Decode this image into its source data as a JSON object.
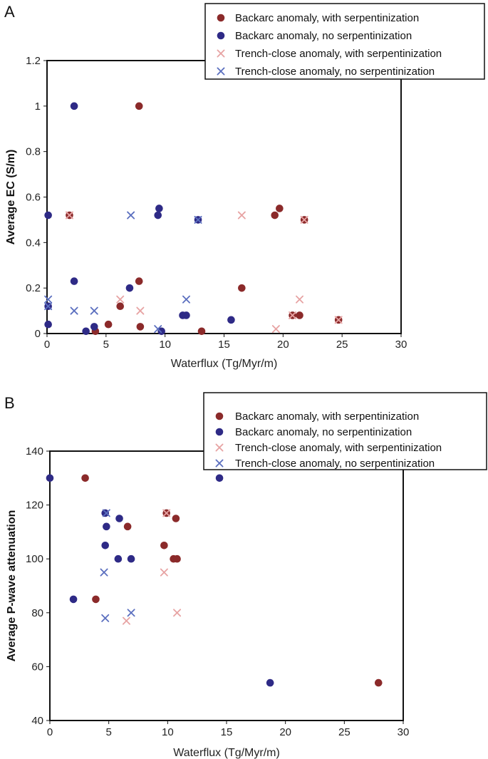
{
  "colors": {
    "backarc_serp": "#8b2a2a",
    "backarc_noserp": "#2e2a86",
    "trench_serp": "#e7a3a3",
    "trench_noserp": "#5b6fbf"
  },
  "chart_data": [
    {
      "panel": "A",
      "type": "scatter",
      "xlabel": "Waterflux (Tg/Myr/m)",
      "ylabel": "Average EC (S/m)",
      "xlim": [
        0,
        30
      ],
      "ylim": [
        0,
        1.2
      ],
      "xticks": [
        "0",
        "5",
        "10",
        "15",
        "20",
        "25",
        "30"
      ],
      "yticks": [
        "0",
        "0.2",
        "0.4",
        "0.6",
        "0.8",
        "1",
        "1.2"
      ],
      "legend": [
        {
          "label": "Backarc anomaly, with serpentinization",
          "marker": "dot",
          "color": "#8b2a2a"
        },
        {
          "label": "Backarc anomaly, no serpentinization",
          "marker": "dot",
          "color": "#2e2a86"
        },
        {
          "label": "Trench-close anomaly, with serpentinization",
          "marker": "x",
          "color": "#e7a3a3"
        },
        {
          "label": "Trench-close anomaly, no serpentinization",
          "marker": "x",
          "color": "#5b6fbf"
        }
      ],
      "series": [
        {
          "name": "Backarc anomaly, with serpentinization",
          "marker": "dot",
          "color": "#8b2a2a",
          "x": [
            7.8,
            1.9,
            19.3,
            19.7,
            21.8,
            7.8,
            16.5,
            6.2,
            5.2,
            4.1,
            7.9,
            13.1,
            20.8,
            21.4,
            24.7
          ],
          "y": [
            1.0,
            0.52,
            0.52,
            0.55,
            0.5,
            0.23,
            0.2,
            0.12,
            0.04,
            0.01,
            0.03,
            0.01,
            0.08,
            0.08,
            0.06
          ]
        },
        {
          "name": "Backarc anomaly, no serpentinization",
          "marker": "dot",
          "color": "#2e2a86",
          "x": [
            2.3,
            0.1,
            9.5,
            9.4,
            12.8,
            2.3,
            7.0,
            0.1,
            0.1,
            3.3,
            4.0,
            9.7,
            11.5,
            11.8,
            15.6
          ],
          "y": [
            1.0,
            0.52,
            0.55,
            0.52,
            0.5,
            0.23,
            0.2,
            0.12,
            0.04,
            0.01,
            0.03,
            0.01,
            0.08,
            0.08,
            0.06
          ]
        },
        {
          "name": "Trench-close anomaly, with serpentinization",
          "marker": "x",
          "color": "#e7a3a3",
          "x": [
            1.9,
            16.5,
            21.8,
            6.2,
            7.9,
            21.4,
            19.4,
            20.8,
            24.7
          ],
          "y": [
            0.52,
            0.52,
            0.5,
            0.15,
            0.1,
            0.15,
            0.02,
            0.08,
            0.06
          ]
        },
        {
          "name": "Trench-close anomaly, no serpentinization",
          "marker": "x",
          "color": "#5b6fbf",
          "x": [
            7.1,
            12.8,
            0.1,
            2.3,
            4.0,
            11.8,
            9.4,
            0.1
          ],
          "y": [
            0.52,
            0.5,
            0.15,
            0.1,
            0.1,
            0.15,
            0.02,
            0.12
          ]
        }
      ]
    },
    {
      "panel": "B",
      "type": "scatter",
      "xlabel": "Waterflux (Tg/Myr/m)",
      "ylabel": "Average P-wave attenuation",
      "xlim": [
        0,
        30
      ],
      "ylim": [
        40,
        140
      ],
      "xticks": [
        "0",
        "5",
        "10",
        "15",
        "20",
        "25",
        "30"
      ],
      "yticks": [
        "40",
        "60",
        "80",
        "100",
        "120",
        "140"
      ],
      "legend": [
        {
          "label": "Backarc anomaly, with serpentinization",
          "marker": "dot",
          "color": "#8b2a2a"
        },
        {
          "label": "Backarc anomaly, no serpentinization",
          "marker": "dot",
          "color": "#2e2a86"
        },
        {
          "label": "Trench-close anomaly, with serpentinization",
          "marker": "x",
          "color": "#e7a3a3"
        },
        {
          "label": "Trench-close anomaly, no serpentinization",
          "marker": "x",
          "color": "#5b6fbf"
        }
      ],
      "series": [
        {
          "name": "Backarc anomaly, with serpentinization",
          "marker": "dot",
          "color": "#8b2a2a",
          "x": [
            3.0,
            9.9,
            10.7,
            6.6,
            9.7,
            10.5,
            10.8,
            3.9,
            27.9
          ],
          "y": [
            130,
            117,
            115,
            112,
            105,
            100,
            100,
            85,
            54
          ]
        },
        {
          "name": "Backarc anomaly, no serpentinization",
          "marker": "dot",
          "color": "#2e2a86",
          "x": [
            0.0,
            14.4,
            4.7,
            5.9,
            4.8,
            4.7,
            5.8,
            6.9,
            2.0,
            18.7
          ],
          "y": [
            130,
            130,
            117,
            115,
            112,
            105,
            100,
            100,
            85,
            54
          ]
        },
        {
          "name": "Trench-close anomaly, with serpentinization",
          "marker": "x",
          "color": "#e7a3a3",
          "x": [
            9.9,
            9.7,
            10.8,
            6.5
          ],
          "y": [
            117,
            95,
            80,
            77
          ]
        },
        {
          "name": "Trench-close anomaly, no serpentinization",
          "marker": "x",
          "color": "#5b6fbf",
          "x": [
            4.8,
            4.6,
            6.9,
            4.7
          ],
          "y": [
            117,
            95,
            80,
            78
          ]
        }
      ]
    }
  ]
}
